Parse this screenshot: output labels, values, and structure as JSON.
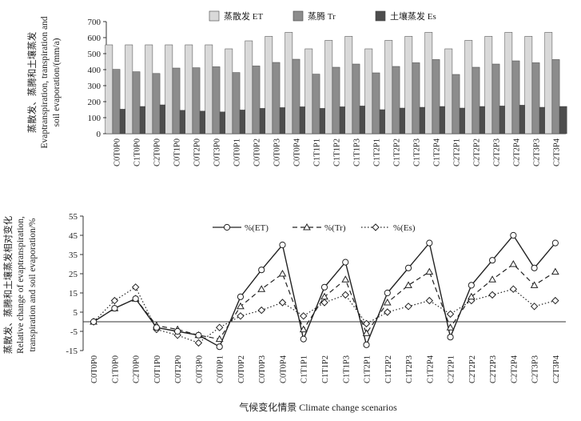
{
  "chart_data": [
    {
      "type": "bar",
      "categories": [
        "C0T0P0",
        "C1T0P0",
        "C2T0P0",
        "C0T1P0",
        "C0T2P0",
        "C0T3P0",
        "C0T0P1",
        "C0T0P2",
        "C0T0P3",
        "C0T0P4",
        "C1T1P1",
        "C1T1P2",
        "C1T1P3",
        "C1T2P1",
        "C1T2P2",
        "C1T2P3",
        "C1T2P4",
        "C2T2P1",
        "C2T2P2",
        "C2T2P3",
        "C2T2P4",
        "C2T3P3",
        "C2T3P4"
      ],
      "series": [
        {
          "name": "蒸散发 ET",
          "color": "#d9d9d9",
          "values": [
            555,
            555,
            555,
            555,
            555,
            555,
            530,
            580,
            608,
            633,
            530,
            583,
            608,
            530,
            583,
            608,
            633,
            530,
            583,
            608,
            633,
            608,
            633
          ]
        },
        {
          "name": "蒸腾 Tr",
          "color": "#8c8c8c",
          "values": [
            402,
            387,
            376,
            410,
            412,
            418,
            382,
            423,
            445,
            465,
            372,
            415,
            435,
            380,
            420,
            443,
            463,
            370,
            415,
            435,
            455,
            443,
            463
          ]
        },
        {
          "name": "土壤蒸发 Es",
          "color": "#4d4d4d",
          "values": [
            153,
            170,
            180,
            146,
            141,
            136,
            148,
            158,
            163,
            168,
            158,
            168,
            173,
            150,
            160,
            165,
            170,
            160,
            170,
            173,
            178,
            165,
            170
          ]
        }
      ],
      "ylabel_cn": "蒸散发、蒸腾和土壤蒸发",
      "ylabel_en_1": "Evaptranspiration, transpiration and",
      "ylabel_en_2": "soil evaporation/(mm/a)",
      "ylim": [
        0,
        700
      ],
      "yticks": [
        "0",
        "100",
        "200",
        "300",
        "400",
        "500",
        "600",
        "700"
      ],
      "legend_position": "top-center",
      "grid": false
    },
    {
      "type": "line",
      "categories": [
        "C0T0P0",
        "C1T0P0",
        "C2T0P0",
        "C0T1P0",
        "C0T2P0",
        "C0T3P0",
        "C0T0P1",
        "C0T0P2",
        "C0T0P3",
        "C0T0P4",
        "C1T1P1",
        "C1T1P2",
        "C1T1P3",
        "C1T2P1",
        "C1T2P2",
        "C1T2P3",
        "C1T2P4",
        "C2T2P1",
        "C2T2P2",
        "C2T2P3",
        "C2T2P4",
        "C2T3P3",
        "C2T3P4"
      ],
      "series": [
        {
          "name": "%(ET)",
          "style": "solid",
          "marker": "circle",
          "values": [
            0,
            7,
            12,
            -3,
            -5,
            -7,
            -13,
            13,
            27,
            40,
            -9,
            18,
            31,
            -12,
            15,
            28,
            41,
            -8,
            19,
            32,
            45,
            28,
            41
          ]
        },
        {
          "name": "%(Tr)",
          "style": "dashed",
          "marker": "triangle",
          "values": [
            0,
            7,
            12,
            -2,
            -4,
            -7,
            -9,
            8,
            17,
            25,
            -4,
            13,
            22,
            -6,
            10,
            19,
            26,
            -3,
            13,
            22,
            30,
            19,
            26
          ]
        },
        {
          "name": "%(Es)",
          "style": "dotted",
          "marker": "diamond",
          "values": [
            0,
            11,
            18,
            -4,
            -7,
            -11,
            -3,
            3,
            6,
            10,
            3,
            10,
            14,
            -1,
            5,
            8,
            11,
            4,
            11,
            14,
            17,
            8,
            11
          ]
        }
      ],
      "ylabel_cn": "蒸散发、蒸腾和土壤蒸发相对变化",
      "ylabel_en_1": "Relative change of evaptranspiration,",
      "ylabel_en_2": "transpiration and soil evaporation/%",
      "ylim": [
        -15,
        55
      ],
      "yticks": [
        "55",
        "45",
        "35",
        "25",
        "15",
        "5",
        "-5",
        "-15"
      ],
      "legend_position": "top-center",
      "grid": false
    }
  ],
  "xlabel": "气候变化情景 Climate change scenarios"
}
